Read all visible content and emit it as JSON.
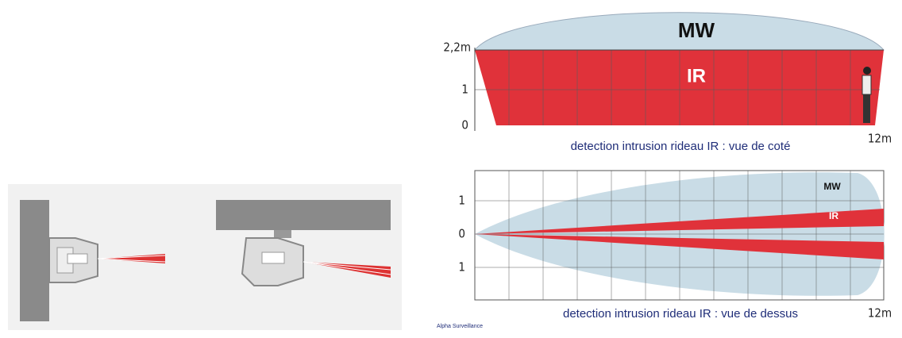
{
  "side_view": {
    "zone_outer": "MW",
    "zone_inner": "IR",
    "height_labels": [
      "2,2m",
      "1",
      "0"
    ],
    "distance_label": "12m",
    "caption": "detection intrusion rideau IR : vue de coté"
  },
  "top_view": {
    "zone_outer": "MW",
    "zone_inner": "IR",
    "width_labels": [
      "1",
      "0",
      "1"
    ],
    "distance_label": "12m",
    "caption": "detection intrusion rideau IR : vue de dessus"
  },
  "credit": "Alpha Surveillance"
}
